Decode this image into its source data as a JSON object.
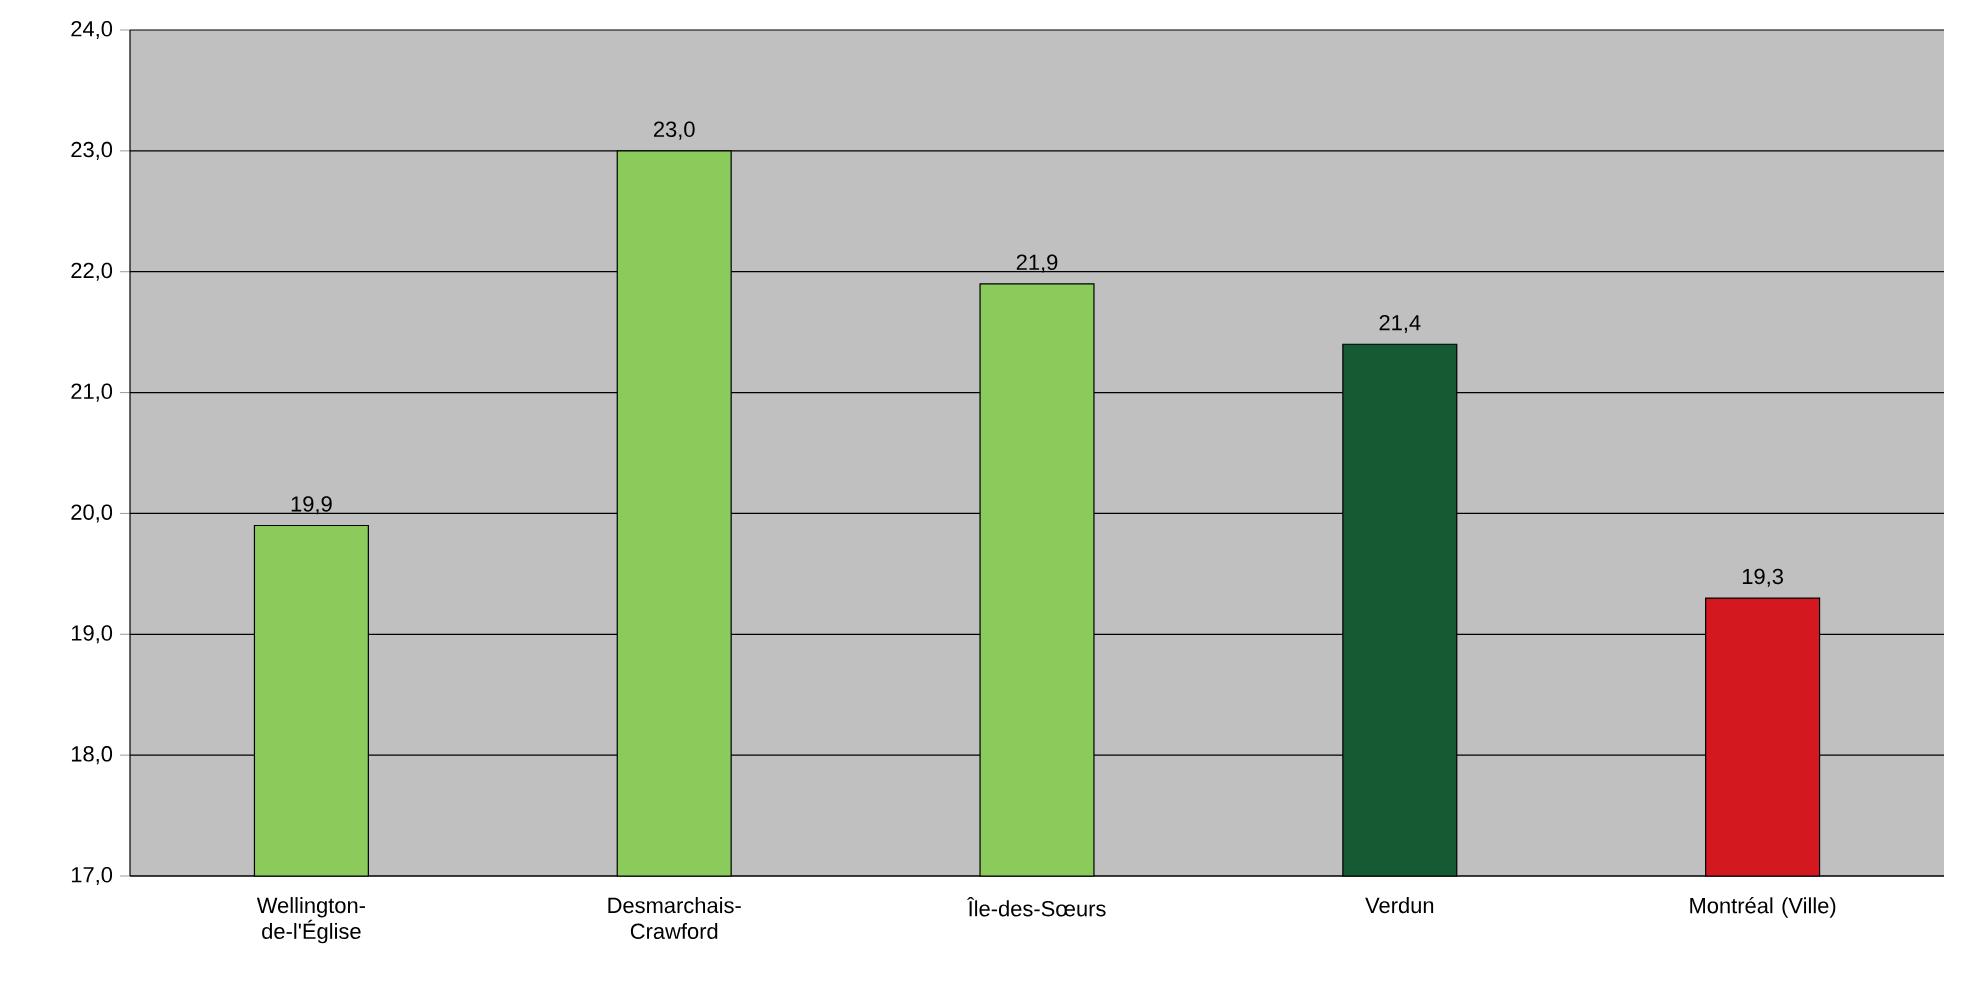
{
  "chart_data": {
    "type": "bar",
    "categories": [
      "Wellington-de-l'Église",
      "Desmarchais-Crawford",
      "Île-des-Sœurs",
      "Verdun",
      "Montréal (Ville)"
    ],
    "values": [
      19.9,
      23.0,
      21.9,
      21.4,
      19.3
    ],
    "value_labels": [
      "19,9",
      "23,0",
      "21,9",
      "21,4",
      "19,3"
    ],
    "colors": [
      "#8acb5c",
      "#8acb5c",
      "#8acb5c",
      "#145a32",
      "#d4181f"
    ],
    "ylim": [
      17,
      24
    ],
    "yticks": [
      {
        "value": 17,
        "label": "17,0"
      },
      {
        "value": 18,
        "label": "18,0"
      },
      {
        "value": 19,
        "label": "19,0"
      },
      {
        "value": 20,
        "label": "20,0"
      },
      {
        "value": 21,
        "label": "21,0"
      },
      {
        "value": 22,
        "label": "22,0"
      },
      {
        "value": 23,
        "label": "23,0"
      },
      {
        "value": 24,
        "label": "24,0"
      }
    ],
    "grid": "y"
  }
}
